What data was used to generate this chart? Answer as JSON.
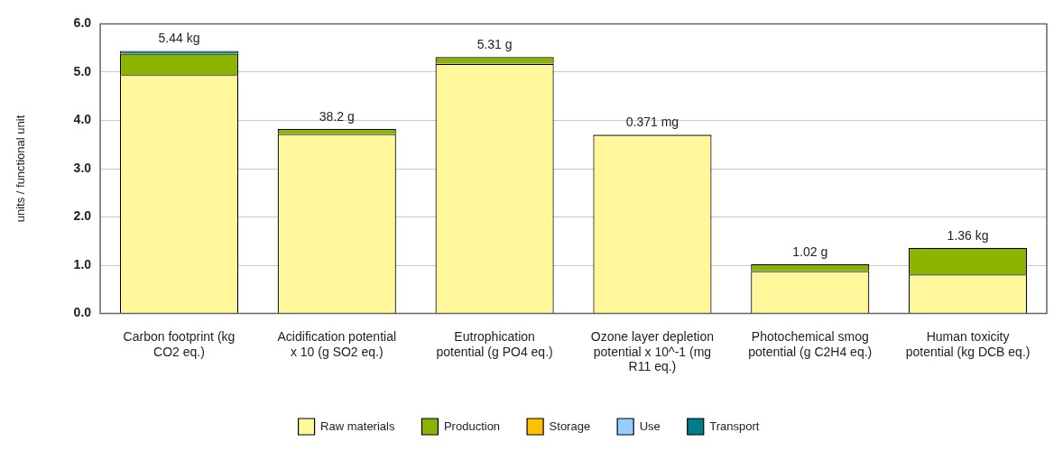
{
  "chart_data": {
    "type": "bar",
    "stacked": true,
    "ylabel": "units / functional unit",
    "categories": [
      "Carbon footprint (kg CO2 eq.)",
      "Acidification potential x 10 (g SO2 eq.)",
      "Eutrophication potential (g PO4 eq.)",
      "Ozone layer depletion potential x 10^-1 (mg R11 eq.)",
      "Photochemical smog potential (g C2H4 eq.)",
      "Human toxicity potential (kg DCB eq.)"
    ],
    "series": [
      {
        "name": "Raw materials",
        "color": "#fff799",
        "values": [
          4.94,
          3.72,
          5.17,
          3.7,
          0.88,
          0.81
        ]
      },
      {
        "name": "Production",
        "color": "#8ab400",
        "values": [
          0.44,
          0.1,
          0.14,
          0.01,
          0.14,
          0.55
        ]
      },
      {
        "name": "Storage",
        "color": "#ffc000",
        "values": [
          null,
          null,
          null,
          null,
          null,
          null
        ]
      },
      {
        "name": "Use",
        "color": "#99ccff",
        "values": [
          null,
          null,
          null,
          null,
          null,
          null
        ]
      },
      {
        "name": "Transport",
        "color": "#007c8c",
        "values": [
          0.06,
          null,
          null,
          null,
          null,
          null
        ]
      }
    ],
    "annotations": [
      {
        "text": "5.44 kg",
        "x": "Carbon footprint (kg CO2 eq.)",
        "y": 5.44
      },
      {
        "text": "38.2 g",
        "x": "Acidification potential x 10 (g SO2 eq.)",
        "y": 3.82
      },
      {
        "text": "5.31 g",
        "x": "Eutrophication potential (g PO4 eq.)",
        "y": 5.31
      },
      {
        "text": "0.371 mg",
        "x": "Ozone layer depletion potential x 10^-1 (mg R11 eq.)",
        "y": 3.71
      },
      {
        "text": "1.02 g",
        "x": "Photochemical smog potential (g C2H4 eq.)",
        "y": 1.02
      },
      {
        "text": "1.36 kg",
        "x": "Human toxicity potential (kg DCB eq.)",
        "y": 1.36
      }
    ],
    "ylim": [
      0,
      6
    ],
    "yticks": [
      {
        "value": 0,
        "label": "0.0"
      },
      {
        "value": 1,
        "label": "1.0"
      },
      {
        "value": 2,
        "label": "2.0"
      },
      {
        "value": 3,
        "label": "3.0"
      },
      {
        "value": 4,
        "label": "4.0"
      },
      {
        "value": 5,
        "label": "5.0"
      },
      {
        "value": 6,
        "label": "6.0"
      }
    ],
    "grid": "y",
    "legend": "bottom"
  }
}
